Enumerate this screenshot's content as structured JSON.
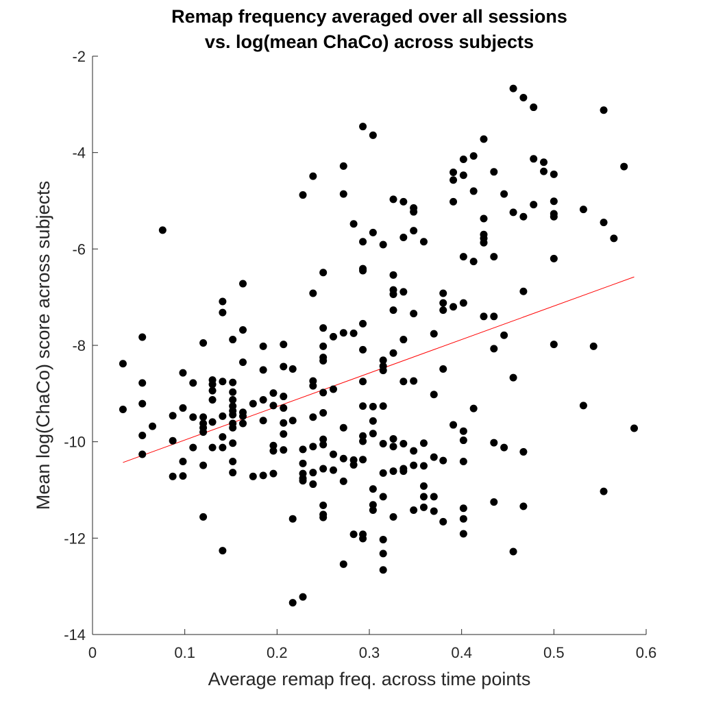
{
  "chart_data": {
    "type": "scatter",
    "title": [
      "Remap frequency averaged over all sessions",
      "vs. log(mean ChaCo) across subjects"
    ],
    "xlabel": "Average remap freq. across time points",
    "ylabel": "Mean log(ChaCo) score across subjects",
    "xlim": [
      0,
      0.6
    ],
    "ylim": [
      -14,
      -2
    ],
    "xticks": [
      "0",
      "0.1",
      "0.2",
      "0.3",
      "0.4",
      "0.5",
      "0.6"
    ],
    "yticks": [
      "-2",
      "-4",
      "-6",
      "-8",
      "-10",
      "-12",
      "-14"
    ],
    "grid": false,
    "marker_color": "#000000",
    "fit_line": {
      "color": "#ff0000",
      "x": [
        0.033,
        0.587
      ],
      "y": [
        -10.43,
        -6.58
      ]
    },
    "points": [
      [
        0.033,
        -8.38
      ],
      [
        0.033,
        -9.33
      ],
      [
        0.054,
        -7.83
      ],
      [
        0.054,
        -8.78
      ],
      [
        0.054,
        -9.21
      ],
      [
        0.054,
        -9.87
      ],
      [
        0.054,
        -10.26
      ],
      [
        0.065,
        -9.68
      ],
      [
        0.076,
        -5.61
      ],
      [
        0.087,
        -9.46
      ],
      [
        0.087,
        -9.98
      ],
      [
        0.087,
        -10.72
      ],
      [
        0.098,
        -8.57
      ],
      [
        0.098,
        -9.3
      ],
      [
        0.098,
        -10.41
      ],
      [
        0.098,
        -10.71
      ],
      [
        0.109,
        -8.78
      ],
      [
        0.109,
        -9.49
      ],
      [
        0.109,
        -10.12
      ],
      [
        0.12,
        -7.95
      ],
      [
        0.12,
        -9.49
      ],
      [
        0.12,
        -9.62
      ],
      [
        0.12,
        -9.71
      ],
      [
        0.12,
        -9.8
      ],
      [
        0.12,
        -10.49
      ],
      [
        0.12,
        -11.56
      ],
      [
        0.13,
        -8.72
      ],
      [
        0.13,
        -8.81
      ],
      [
        0.13,
        -8.94
      ],
      [
        0.13,
        -9.13
      ],
      [
        0.13,
        -9.59
      ],
      [
        0.13,
        -10.12
      ],
      [
        0.141,
        -7.09
      ],
      [
        0.141,
        -7.32
      ],
      [
        0.141,
        -8.75
      ],
      [
        0.141,
        -9.47
      ],
      [
        0.141,
        -9.9
      ],
      [
        0.141,
        -10.12
      ],
      [
        0.141,
        -12.26
      ],
      [
        0.152,
        -7.88
      ],
      [
        0.152,
        -8.77
      ],
      [
        0.152,
        -8.97
      ],
      [
        0.152,
        -9.13
      ],
      [
        0.152,
        -9.26
      ],
      [
        0.152,
        -9.36
      ],
      [
        0.152,
        -9.44
      ],
      [
        0.152,
        -9.62
      ],
      [
        0.152,
        -9.71
      ],
      [
        0.152,
        -10.03
      ],
      [
        0.152,
        -10.41
      ],
      [
        0.152,
        -10.64
      ],
      [
        0.163,
        -6.72
      ],
      [
        0.163,
        -7.68
      ],
      [
        0.163,
        -8.35
      ],
      [
        0.163,
        -9.39
      ],
      [
        0.163,
        -9.47
      ],
      [
        0.163,
        -9.62
      ],
      [
        0.174,
        -9.21
      ],
      [
        0.174,
        -10.72
      ],
      [
        0.185,
        -8.02
      ],
      [
        0.185,
        -8.51
      ],
      [
        0.185,
        -9.13
      ],
      [
        0.185,
        -9.56
      ],
      [
        0.185,
        -10.7
      ],
      [
        0.196,
        -8.99
      ],
      [
        0.196,
        -9.25
      ],
      [
        0.196,
        -10.08
      ],
      [
        0.196,
        -10.19
      ],
      [
        0.196,
        -10.66
      ],
      [
        0.207,
        -7.98
      ],
      [
        0.207,
        -8.44
      ],
      [
        0.207,
        -9.06
      ],
      [
        0.207,
        -9.3
      ],
      [
        0.207,
        -9.61
      ],
      [
        0.207,
        -9.84
      ],
      [
        0.207,
        -10.17
      ],
      [
        0.217,
        -8.49
      ],
      [
        0.217,
        -9.56
      ],
      [
        0.217,
        -11.6
      ],
      [
        0.217,
        -13.34
      ],
      [
        0.228,
        -4.88
      ],
      [
        0.228,
        -10.16
      ],
      [
        0.228,
        -10.45
      ],
      [
        0.228,
        -10.66
      ],
      [
        0.228,
        -10.76
      ],
      [
        0.228,
        -10.81
      ],
      [
        0.228,
        -13.22
      ],
      [
        0.239,
        -4.49
      ],
      [
        0.239,
        -6.92
      ],
      [
        0.239,
        -8.74
      ],
      [
        0.239,
        -8.84
      ],
      [
        0.239,
        -9.49
      ],
      [
        0.239,
        -10.1
      ],
      [
        0.239,
        -10.64
      ],
      [
        0.239,
        -10.88
      ],
      [
        0.25,
        -6.49
      ],
      [
        0.25,
        -7.64
      ],
      [
        0.25,
        -8.02
      ],
      [
        0.25,
        -8.25
      ],
      [
        0.25,
        -8.32
      ],
      [
        0.25,
        -8.98
      ],
      [
        0.25,
        -9.4
      ],
      [
        0.25,
        -9.95
      ],
      [
        0.25,
        -10.06
      ],
      [
        0.25,
        -10.56
      ],
      [
        0.25,
        -11.32
      ],
      [
        0.25,
        -11.51
      ],
      [
        0.25,
        -11.57
      ],
      [
        0.261,
        -7.82
      ],
      [
        0.261,
        -8.91
      ],
      [
        0.261,
        -10.26
      ],
      [
        0.261,
        -10.59
      ],
      [
        0.272,
        -4.28
      ],
      [
        0.272,
        -4.86
      ],
      [
        0.272,
        -7.74
      ],
      [
        0.272,
        -9.71
      ],
      [
        0.272,
        -10.35
      ],
      [
        0.272,
        -10.82
      ],
      [
        0.272,
        -12.54
      ],
      [
        0.283,
        -5.48
      ],
      [
        0.283,
        -7.75
      ],
      [
        0.283,
        -10.38
      ],
      [
        0.283,
        -10.48
      ],
      [
        0.283,
        -11.92
      ],
      [
        0.293,
        -3.46
      ],
      [
        0.293,
        -5.85
      ],
      [
        0.293,
        -6.41
      ],
      [
        0.293,
        -6.45
      ],
      [
        0.293,
        -7.55
      ],
      [
        0.293,
        -8.09
      ],
      [
        0.293,
        -8.75
      ],
      [
        0.293,
        -9.26
      ],
      [
        0.293,
        -9.88
      ],
      [
        0.293,
        -9.99
      ],
      [
        0.293,
        -10.37
      ],
      [
        0.293,
        -11.92
      ],
      [
        0.293,
        -12.01
      ],
      [
        0.304,
        -3.64
      ],
      [
        0.304,
        -5.66
      ],
      [
        0.304,
        -9.27
      ],
      [
        0.304,
        -9.57
      ],
      [
        0.304,
        -9.83
      ],
      [
        0.304,
        -10.98
      ],
      [
        0.304,
        -11.31
      ],
      [
        0.304,
        -11.42
      ],
      [
        0.315,
        -5.91
      ],
      [
        0.315,
        -8.31
      ],
      [
        0.315,
        -8.43
      ],
      [
        0.315,
        -8.52
      ],
      [
        0.315,
        -9.26
      ],
      [
        0.315,
        -10.04
      ],
      [
        0.315,
        -10.65
      ],
      [
        0.315,
        -11.14
      ],
      [
        0.315,
        -12.03
      ],
      [
        0.315,
        -12.32
      ],
      [
        0.315,
        -12.66
      ],
      [
        0.326,
        -4.97
      ],
      [
        0.326,
        -6.54
      ],
      [
        0.326,
        -6.85
      ],
      [
        0.326,
        -6.94
      ],
      [
        0.326,
        -7.27
      ],
      [
        0.326,
        -8.16
      ],
      [
        0.326,
        -9.94
      ],
      [
        0.326,
        -10.1
      ],
      [
        0.326,
        -10.61
      ],
      [
        0.326,
        -11.56
      ],
      [
        0.337,
        -5.02
      ],
      [
        0.337,
        -5.76
      ],
      [
        0.337,
        -6.89
      ],
      [
        0.337,
        -7.88
      ],
      [
        0.337,
        -8.75
      ],
      [
        0.337,
        -10.04
      ],
      [
        0.337,
        -10.56
      ],
      [
        0.337,
        -10.61
      ],
      [
        0.348,
        -5.15
      ],
      [
        0.348,
        -5.23
      ],
      [
        0.348,
        -5.62
      ],
      [
        0.348,
        -7.34
      ],
      [
        0.348,
        -8.74
      ],
      [
        0.348,
        -10.19
      ],
      [
        0.348,
        -10.49
      ],
      [
        0.348,
        -11.42
      ],
      [
        0.359,
        -5.85
      ],
      [
        0.359,
        -10.03
      ],
      [
        0.359,
        -10.5
      ],
      [
        0.359,
        -10.92
      ],
      [
        0.359,
        -11.14
      ],
      [
        0.359,
        -11.36
      ],
      [
        0.37,
        -7.76
      ],
      [
        0.37,
        -9.02
      ],
      [
        0.37,
        -10.32
      ],
      [
        0.37,
        -11.14
      ],
      [
        0.37,
        -11.44
      ],
      [
        0.38,
        -6.92
      ],
      [
        0.38,
        -7.12
      ],
      [
        0.38,
        -7.27
      ],
      [
        0.38,
        -8.49
      ],
      [
        0.38,
        -10.39
      ],
      [
        0.38,
        -11.66
      ],
      [
        0.391,
        -4.41
      ],
      [
        0.391,
        -4.57
      ],
      [
        0.391,
        -5.02
      ],
      [
        0.391,
        -7.2
      ],
      [
        0.391,
        -9.65
      ],
      [
        0.402,
        -4.14
      ],
      [
        0.402,
        -4.47
      ],
      [
        0.402,
        -6.16
      ],
      [
        0.402,
        -7.12
      ],
      [
        0.402,
        -9.78
      ],
      [
        0.402,
        -9.97
      ],
      [
        0.402,
        -10.41
      ],
      [
        0.402,
        -11.38
      ],
      [
        0.402,
        -11.6
      ],
      [
        0.402,
        -11.91
      ],
      [
        0.413,
        -4.07
      ],
      [
        0.413,
        -4.8
      ],
      [
        0.413,
        -6.26
      ],
      [
        0.413,
        -9.31
      ],
      [
        0.424,
        -3.72
      ],
      [
        0.424,
        -5.37
      ],
      [
        0.424,
        -5.7
      ],
      [
        0.424,
        -5.78
      ],
      [
        0.424,
        -5.87
      ],
      [
        0.424,
        -7.4
      ],
      [
        0.435,
        -4.4
      ],
      [
        0.435,
        -6.16
      ],
      [
        0.435,
        -7.4
      ],
      [
        0.435,
        -8.07
      ],
      [
        0.435,
        -10.02
      ],
      [
        0.435,
        -11.25
      ],
      [
        0.446,
        -4.86
      ],
      [
        0.446,
        -7.79
      ],
      [
        0.446,
        -10.12
      ],
      [
        0.456,
        -2.67
      ],
      [
        0.456,
        -5.24
      ],
      [
        0.456,
        -8.67
      ],
      [
        0.456,
        -12.28
      ],
      [
        0.467,
        -2.86
      ],
      [
        0.467,
        -5.33
      ],
      [
        0.467,
        -6.88
      ],
      [
        0.467,
        -10.21
      ],
      [
        0.467,
        -11.34
      ],
      [
        0.478,
        -3.06
      ],
      [
        0.478,
        -4.13
      ],
      [
        0.478,
        -5.08
      ],
      [
        0.489,
        -4.2
      ],
      [
        0.489,
        -4.39
      ],
      [
        0.5,
        -4.45
      ],
      [
        0.5,
        -5.01
      ],
      [
        0.5,
        -5.27
      ],
      [
        0.5,
        -5.33
      ],
      [
        0.5,
        -6.2
      ],
      [
        0.5,
        -7.98
      ],
      [
        0.532,
        -5.18
      ],
      [
        0.532,
        -9.25
      ],
      [
        0.543,
        -8.02
      ],
      [
        0.554,
        -3.12
      ],
      [
        0.554,
        -5.45
      ],
      [
        0.554,
        -11.03
      ],
      [
        0.565,
        -5.78
      ],
      [
        0.576,
        -4.29
      ],
      [
        0.587,
        -9.72
      ]
    ]
  }
}
